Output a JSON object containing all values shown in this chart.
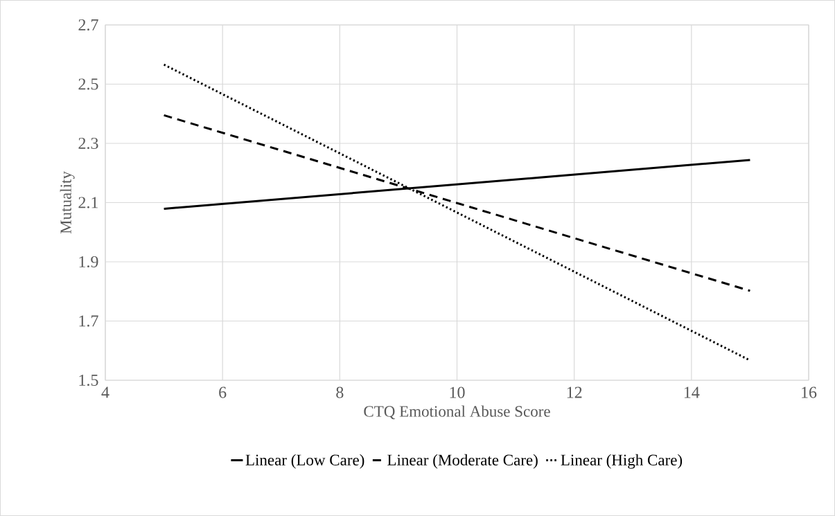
{
  "chart_data": {
    "type": "line",
    "xlabel": "CTQ Emotional Abuse Score",
    "ylabel": "Mutuality",
    "x": [
      5,
      15
    ],
    "series": [
      {
        "name": "Linear (Low Care)",
        "color": "#000000",
        "line_style": "solid",
        "values": [
          2.079,
          2.244
        ]
      },
      {
        "name": "Linear (Moderate Care)",
        "color": "#000000",
        "line_style": "dashed",
        "values": [
          2.395,
          1.802
        ]
      },
      {
        "name": "Linear (High Care)",
        "color": "#000000",
        "line_style": "dotted",
        "values": [
          2.566,
          1.567
        ]
      }
    ],
    "xlim": [
      4,
      16
    ],
    "xticks": [
      4,
      6,
      8,
      10,
      12,
      14,
      16
    ],
    "ylim": [
      1.5,
      2.7
    ],
    "yticks": [
      1.5,
      1.7,
      1.9,
      2.1,
      2.3,
      2.5,
      2.7
    ],
    "grid": true,
    "legend": "bottom",
    "marker": "none"
  }
}
